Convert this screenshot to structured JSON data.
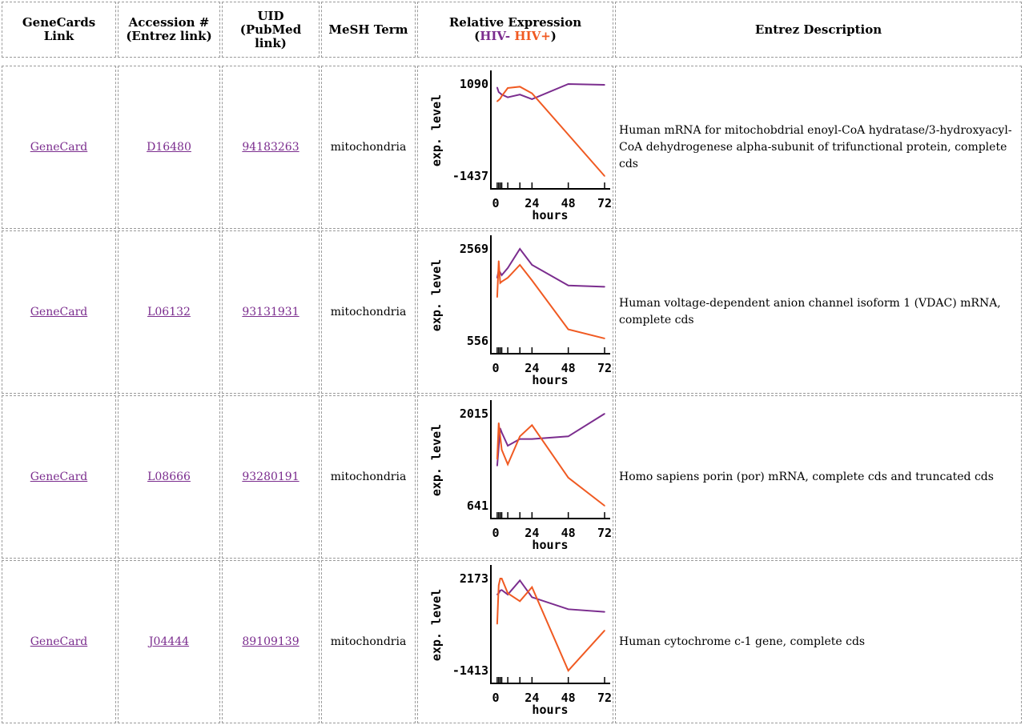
{
  "header": {
    "genecards": [
      "GeneCards",
      "Link"
    ],
    "accession": [
      "Accession #",
      "(Entrez link)"
    ],
    "uid": [
      "UID",
      "(PubMed",
      "link)"
    ],
    "mesh": "MeSH Term",
    "expression": "Relative Expression",
    "hiv_neg": "HIV-",
    "hiv_pos": "HIV+",
    "description": "Entrez Description"
  },
  "colors": {
    "hiv_neg": "#7b2d8e",
    "hiv_pos": "#f05a22"
  },
  "rows": [
    {
      "genecard": "GeneCard",
      "accession": "D16480",
      "uid": "94183263",
      "mesh": "mitochondria",
      "description": "Human mRNA for mitochobdrial enoyl-CoA hydratase/3-hydroxyacyl-CoA dehydrogenese alpha-subunit of trifunctional protein, complete cds"
    },
    {
      "genecard": "GeneCard",
      "accession": "L06132",
      "uid": "93131931",
      "mesh": "mitochondria",
      "description": "Human voltage-dependent anion channel isoform 1 (VDAC) mRNA, complete cds"
    },
    {
      "genecard": "GeneCard",
      "accession": "L08666",
      "uid": "93280191",
      "mesh": "mitochondria",
      "description": "Homo sapiens porin (por) mRNA, complete cds and truncated cds"
    },
    {
      "genecard": "GeneCard",
      "accession": "J04444",
      "uid": "89109139",
      "mesh": "mitochondria",
      "description": "Human cytochrome c-1 gene, complete cds"
    }
  ],
  "chart_data": [
    {
      "type": "line",
      "xlabel": "hours",
      "ylabel": "exp. level",
      "x": [
        1,
        2,
        3,
        4,
        8,
        16,
        24,
        48,
        72
      ],
      "xticks": [
        "0",
        "24",
        "48",
        "72"
      ],
      "xlim": [
        0,
        72
      ],
      "ylim": [
        -1437,
        1090
      ],
      "ytick_labels": [
        "1090",
        "-1437"
      ],
      "series": [
        {
          "name": "HIV-",
          "values": [
            995,
            870,
            835,
            800,
            725,
            800,
            675,
            1090,
            1068
          ]
        },
        {
          "name": "HIV+",
          "values": [
            614,
            650,
            690,
            760,
            980,
            1017,
            835,
            -300,
            -1437
          ]
        }
      ]
    },
    {
      "type": "line",
      "xlabel": "hours",
      "ylabel": "exp. level",
      "x": [
        1,
        2,
        3,
        4,
        8,
        16,
        24,
        48,
        72
      ],
      "xticks": [
        "0",
        "24",
        "48",
        "72"
      ],
      "xlim": [
        0,
        72
      ],
      "ylim": [
        556,
        2569
      ],
      "ytick_labels": [
        "2569",
        "556"
      ],
      "series": [
        {
          "name": "HIV-",
          "values": [
            1937,
            2106,
            2050,
            1993,
            2150,
            2569,
            2219,
            1768,
            1740
          ]
        },
        {
          "name": "HIV+",
          "values": [
            1514,
            2304,
            1824,
            1852,
            1937,
            2219,
            1880,
            808,
            610
          ]
        }
      ]
    },
    {
      "type": "line",
      "xlabel": "hours",
      "ylabel": "exp. level",
      "x": [
        1,
        2,
        3,
        4,
        8,
        16,
        24,
        48,
        72
      ],
      "xticks": [
        "0",
        "24",
        "48",
        "72"
      ],
      "xlim": [
        0,
        72
      ],
      "ylim": [
        641,
        2015
      ],
      "ytick_labels": [
        "2015",
        "641"
      ],
      "series": [
        {
          "name": "HIV-",
          "values": [
            1239,
            1517,
            1796,
            1736,
            1537,
            1637,
            1637,
            1677,
            2015
          ]
        },
        {
          "name": "HIV+",
          "values": [
            1338,
            1876,
            1677,
            1478,
            1259,
            1677,
            1844,
            1060,
            641
          ]
        }
      ]
    },
    {
      "type": "line",
      "xlabel": "hours",
      "ylabel": "exp. level",
      "x": [
        1,
        2,
        3,
        4,
        8,
        16,
        24,
        48,
        72
      ],
      "xticks": [
        "0",
        "24",
        "48",
        "72"
      ],
      "xlim": [
        0,
        72
      ],
      "ylim": [
        -1413,
        2173
      ],
      "ytick_labels": [
        "2173",
        "-1413"
      ],
      "series": [
        {
          "name": "HIV-",
          "values": [
            1550,
            1602,
            1706,
            1726,
            1550,
            2100,
            1446,
            978,
            874
          ]
        },
        {
          "name": "HIV+",
          "values": [
            407,
            1913,
            2173,
            2173,
            1602,
            1290,
            1840,
            -1413,
            147
          ]
        }
      ]
    }
  ]
}
